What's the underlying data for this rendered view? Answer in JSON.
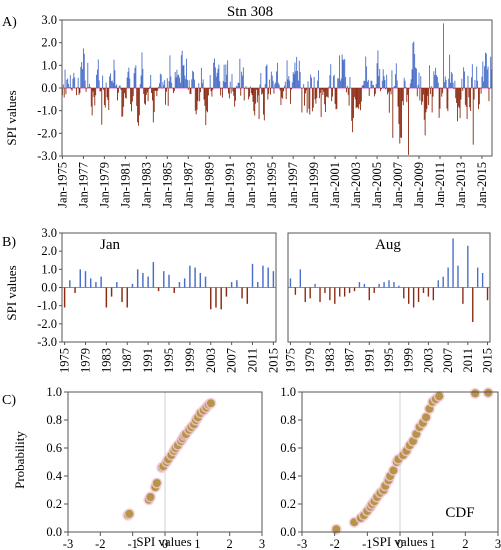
{
  "colors": {
    "positive": "#4a6fc8",
    "negative": "#8b2a12",
    "cdf_point": "#b8944a",
    "cdf_halo": "#f0c8d8",
    "zero_line": "#e060c0"
  },
  "chart_data": [
    {
      "id": "A",
      "panel_label": "A)",
      "type": "bar",
      "title": "Stn 308",
      "xlabel": "",
      "ylabel": "SPI values",
      "ylim": [
        -3.0,
        3.0
      ],
      "yticks": [
        "3.0",
        "2.0",
        "1.0",
        "0.0",
        "-1.0",
        "-2.0",
        "-3.0"
      ],
      "xticks": [
        "Jan-1975",
        "Jan-1977",
        "Jan-1979",
        "Jan-1981",
        "Jan-1983",
        "Jan-1985",
        "Jan-1987",
        "Jan-1989",
        "Jan-1991",
        "Jan-1993",
        "Jan-1995",
        "Jan-1997",
        "Jan-1999",
        "Jan-2001",
        "Jan-2003",
        "Jan-2005",
        "Jan-2007",
        "Jan-2009",
        "Jan-2011",
        "Jan-2013",
        "Jan-2015"
      ],
      "x_start": "Jan-1975",
      "n_months": 492,
      "series": [
        {
          "values": []
        }
      ]
    },
    {
      "id": "B1",
      "panel_label": "B)",
      "type": "bar",
      "title": "Jan",
      "xlabel": "",
      "ylabel": "SPI values",
      "ylim": [
        -3.0,
        3.0
      ],
      "yticks": [
        "3.0",
        "2.0",
        "1.0",
        "0.0",
        "-1.0",
        "-2.0",
        "-3.0"
      ],
      "xticks": [
        "1975",
        "1979",
        "1983",
        "1987",
        "1991",
        "1995",
        "1999",
        "2003",
        "2007",
        "2011",
        "2015"
      ],
      "x": [
        1975,
        1976,
        1977,
        1978,
        1979,
        1980,
        1981,
        1982,
        1983,
        1984,
        1985,
        1986,
        1987,
        1988,
        1989,
        1990,
        1991,
        1992,
        1993,
        1994,
        1995,
        1996,
        1997,
        1998,
        1999,
        2000,
        2001,
        2002,
        2003,
        2004,
        2005,
        2006,
        2007,
        2008,
        2009,
        2010,
        2011,
        2012,
        2013,
        2014,
        2015
      ],
      "series": [
        {
          "values": [
            -1.1,
            0.4,
            -0.3,
            1.0,
            0.9,
            0.5,
            0.3,
            0.6,
            -1.1,
            -0.5,
            0.3,
            -0.8,
            -1.1,
            0.2,
            1.0,
            0.8,
            0.6,
            1.4,
            -0.2,
            0.9,
            0.7,
            -0.3,
            0.3,
            0.5,
            1.2,
            1.1,
            0.8,
            0.6,
            -1.2,
            -1.1,
            -1.2,
            -0.5,
            0.3,
            0.4,
            -0.6,
            -0.9,
            1.3,
            0.3,
            1.2,
            1.1,
            0.9
          ]
        }
      ]
    },
    {
      "id": "B2",
      "panel_label": "",
      "type": "bar",
      "title": "Aug",
      "xlabel": "",
      "ylabel": "",
      "ylim": [
        -3.0,
        3.0
      ],
      "xticks": [
        "1975",
        "1979",
        "1983",
        "1987",
        "1991",
        "1995",
        "1999",
        "2003",
        "2007",
        "2011",
        "2015"
      ],
      "x": [
        1975,
        1976,
        1977,
        1978,
        1979,
        1980,
        1981,
        1982,
        1983,
        1984,
        1985,
        1986,
        1987,
        1988,
        1989,
        1990,
        1991,
        1992,
        1993,
        1994,
        1995,
        1996,
        1997,
        1998,
        1999,
        2000,
        2001,
        2002,
        2003,
        2004,
        2005,
        2006,
        2007,
        2008,
        2009,
        2010,
        2011,
        2012,
        2013,
        2014,
        2015
      ],
      "series": [
        {
          "values": [
            0.5,
            -0.4,
            1.0,
            -0.8,
            -0.6,
            0.2,
            -0.8,
            -0.3,
            -0.7,
            -0.9,
            -0.5,
            -0.5,
            -0.3,
            -0.2,
            0.3,
            0.2,
            -0.7,
            -0.3,
            0.2,
            0.3,
            0.4,
            0.3,
            0.1,
            -0.6,
            -0.9,
            -1.1,
            -0.8,
            -0.3,
            -0.5,
            -0.7,
            0.4,
            0.6,
            1.1,
            2.7,
            1.2,
            -0.9,
            2.3,
            -1.9,
            1.1,
            0.8,
            -0.7
          ]
        }
      ]
    },
    {
      "id": "C1",
      "panel_label": "C)",
      "type": "scatter",
      "title": "",
      "xlabel": "SPI values",
      "ylabel": "Probability",
      "xlim": [
        -3,
        3
      ],
      "ylim": [
        0.0,
        1.0
      ],
      "xticks": [
        "-3",
        "-2",
        "-1",
        "0",
        "1",
        "2",
        "3"
      ],
      "yticks": [
        "0.0",
        "0.2",
        "0.4",
        "0.6",
        "0.8",
        "1.0"
      ],
      "series": [
        {
          "points": [
            [
              -1.15,
              0.12
            ],
            [
              -1.1,
              0.13
            ],
            [
              -0.5,
              0.23
            ],
            [
              -0.45,
              0.25
            ],
            [
              -0.3,
              0.32
            ],
            [
              -0.25,
              0.35
            ],
            [
              -0.1,
              0.46
            ],
            [
              -0.05,
              0.47
            ],
            [
              0.05,
              0.5
            ],
            [
              0.1,
              0.52
            ],
            [
              0.2,
              0.55
            ],
            [
              0.28,
              0.58
            ],
            [
              0.33,
              0.6
            ],
            [
              0.4,
              0.62
            ],
            [
              0.5,
              0.65
            ],
            [
              0.55,
              0.67
            ],
            [
              0.6,
              0.69
            ],
            [
              0.65,
              0.7
            ],
            [
              0.75,
              0.73
            ],
            [
              0.82,
              0.75
            ],
            [
              0.9,
              0.77
            ],
            [
              0.96,
              0.8
            ],
            [
              1.02,
              0.82
            ],
            [
              1.1,
              0.85
            ],
            [
              1.2,
              0.87
            ],
            [
              1.28,
              0.89
            ],
            [
              1.35,
              0.91
            ],
            [
              1.42,
              0.92
            ]
          ]
        }
      ]
    },
    {
      "id": "C2",
      "panel_label": "",
      "type": "scatter",
      "title": "",
      "annotation": "CDF",
      "xlabel": "SPI values",
      "ylabel": "",
      "xlim": [
        -3,
        3
      ],
      "ylim": [
        0.0,
        1.0
      ],
      "xticks": [
        "-3",
        "-2",
        "-1",
        "0",
        "1",
        "2",
        "3"
      ],
      "yticks": [
        "0.0",
        "0.2",
        "0.4",
        "0.6",
        "0.8",
        "1.0"
      ],
      "series": [
        {
          "points": [
            [
              -1.95,
              0.02
            ],
            [
              -1.4,
              0.07
            ],
            [
              -1.2,
              0.1
            ],
            [
              -1.1,
              0.12
            ],
            [
              -1.0,
              0.15
            ],
            [
              -0.9,
              0.18
            ],
            [
              -0.85,
              0.2
            ],
            [
              -0.78,
              0.22
            ],
            [
              -0.7,
              0.25
            ],
            [
              -0.6,
              0.28
            ],
            [
              -0.5,
              0.3
            ],
            [
              -0.45,
              0.33
            ],
            [
              -0.35,
              0.37
            ],
            [
              -0.3,
              0.4
            ],
            [
              -0.2,
              0.44
            ],
            [
              -0.1,
              0.5
            ],
            [
              -0.05,
              0.52
            ],
            [
              0.1,
              0.55
            ],
            [
              0.2,
              0.58
            ],
            [
              0.3,
              0.62
            ],
            [
              0.4,
              0.65
            ],
            [
              0.5,
              0.7
            ],
            [
              0.6,
              0.75
            ],
            [
              0.7,
              0.78
            ],
            [
              0.8,
              0.82
            ],
            [
              0.9,
              0.88
            ],
            [
              1.0,
              0.93
            ],
            [
              1.1,
              0.95
            ],
            [
              1.2,
              0.97
            ],
            [
              2.3,
              0.99
            ],
            [
              2.7,
              0.995
            ]
          ]
        }
      ]
    }
  ]
}
